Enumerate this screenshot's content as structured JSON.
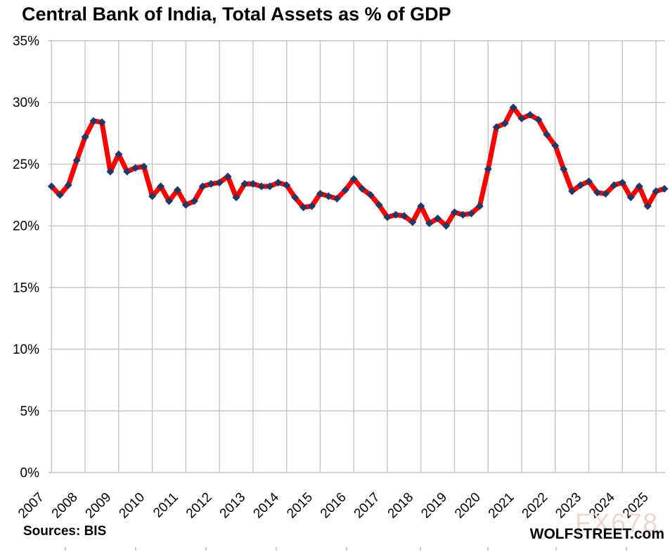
{
  "title": "Central Bank of India, Total Assets as % of GDP",
  "footer": {
    "left": "Sources: BIS",
    "right": "WOLFSTREET.com"
  },
  "watermark": "FX678",
  "colors": {
    "line": "#ff0000",
    "marker": "#1f3864",
    "gridline": "#c4c4c4",
    "text": "#000000",
    "watermark": "#ecd8d2"
  },
  "chart_data": {
    "type": "line",
    "title": "Central Bank of India, Total Assets as % of GDP",
    "xlabel": "",
    "ylabel": "",
    "y_axis_unit": "%",
    "ylim": [
      0,
      35
    ],
    "grid": true,
    "legend": "none",
    "frequency": "quarterly",
    "start": "2007 Q1",
    "end": "2025 Q2",
    "years": [
      2007,
      2008,
      2009,
      2010,
      2011,
      2012,
      2013,
      2014,
      2015,
      2016,
      2017,
      2018,
      2019,
      2020,
      2021,
      2022,
      2023,
      2024,
      2025
    ],
    "y_tick_values": [
      35,
      30,
      25,
      20,
      15,
      10,
      5,
      0
    ],
    "y_tick_labels": [
      "35%",
      "30%",
      "25%",
      "20%",
      "15%",
      "10%",
      "5%",
      "0%"
    ],
    "values": [
      23.2,
      22.5,
      23.3,
      25.3,
      27.2,
      28.5,
      28.4,
      24.4,
      25.8,
      24.4,
      24.7,
      24.8,
      22.4,
      23.2,
      22.0,
      22.9,
      21.7,
      22.0,
      23.2,
      23.4,
      23.5,
      24.0,
      22.3,
      23.4,
      23.4,
      23.2,
      23.2,
      23.5,
      23.3,
      22.3,
      21.5,
      21.6,
      22.6,
      22.4,
      22.2,
      22.9,
      23.8,
      23.0,
      22.5,
      21.7,
      20.7,
      20.9,
      20.8,
      20.3,
      21.6,
      20.2,
      20.6,
      20.0,
      21.1,
      20.9,
      21.0,
      21.6,
      24.6,
      28.0,
      28.3,
      29.6,
      28.7,
      29.0,
      28.6,
      27.4,
      26.5,
      24.6,
      22.8,
      23.3,
      23.6,
      22.7,
      22.6,
      23.3,
      23.5,
      22.3,
      23.2,
      21.6,
      22.8,
      23.0
    ]
  }
}
